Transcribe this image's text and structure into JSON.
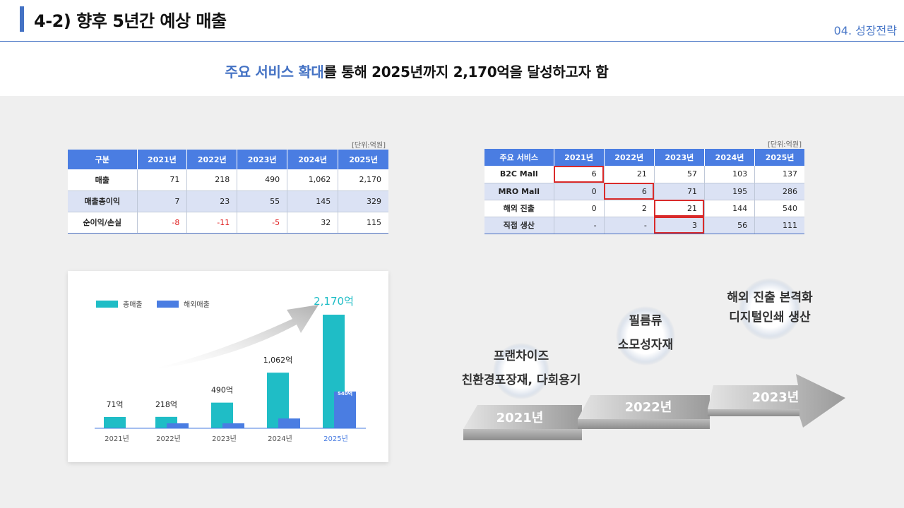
{
  "header": {
    "title": "4-2) 향후 5년간 예상 매출",
    "section": "04. 성장전략",
    "headline_highlight": "주요 서비스 확대",
    "headline_rest": "를 통해 2025년까지 2,170억을 달성하고자 함"
  },
  "table1": {
    "unit": "[단위:억원]",
    "columns": [
      "구분",
      "2021년",
      "2022년",
      "2023년",
      "2024년",
      "2025년"
    ],
    "rows": [
      {
        "label": "매출",
        "values": [
          "71",
          "218",
          "490",
          "1,062",
          "2,170"
        ]
      },
      {
        "label": "매출총이익",
        "values": [
          "7",
          "23",
          "55",
          "145",
          "329"
        ]
      },
      {
        "label": "순이익/손실",
        "values": [
          "-8",
          "-11",
          "-5",
          "32",
          "115"
        ]
      }
    ]
  },
  "table2": {
    "unit": "[단위:억원]",
    "columns": [
      "주요 서비스",
      "2021년",
      "2022년",
      "2023년",
      "2024년",
      "2025년"
    ],
    "rows": [
      {
        "label": "B2C Mall",
        "values": [
          "6",
          "21",
          "57",
          "103",
          "137"
        ]
      },
      {
        "label": "MRO Mall",
        "values": [
          "0",
          "6",
          "71",
          "195",
          "286"
        ]
      },
      {
        "label": "해외 진출",
        "values": [
          "0",
          "2",
          "21",
          "144",
          "540"
        ]
      },
      {
        "label": "직접 생산",
        "values": [
          "-",
          "-",
          "3",
          "56",
          "111"
        ]
      }
    ]
  },
  "chart_data": {
    "type": "bar",
    "categories": [
      "2021년",
      "2022년",
      "2023년",
      "2024년",
      "2025년"
    ],
    "series": [
      {
        "name": "총매출",
        "values": [
          71,
          218,
          490,
          1062,
          2170
        ],
        "color": "#1fbdc6"
      },
      {
        "name": "해외매출",
        "values": [
          0,
          2,
          21,
          144,
          540
        ],
        "color": "#4a7de2"
      }
    ],
    "data_labels": [
      "71억",
      "218억",
      "490억",
      "1,062억",
      "2,170억"
    ],
    "overseas_label": "540억",
    "highlight_color": "#1fbdc6",
    "legend": "top-left",
    "ylim": [
      0,
      2300
    ]
  },
  "timeline": {
    "steps": [
      {
        "year": "2021년",
        "line1": "프랜차이즈",
        "line2": "친환경포장재, 다회용기"
      },
      {
        "year": "2022년",
        "line1": "필름류",
        "line2": "소모성자재"
      },
      {
        "year": "2023년",
        "line1": "해외 진출 본격화",
        "line2": "디지털인쇄 생산"
      }
    ]
  }
}
